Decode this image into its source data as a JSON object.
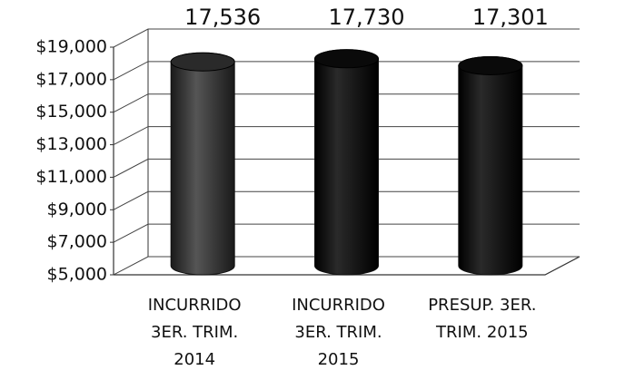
{
  "chart_data": {
    "type": "bar",
    "categories": [
      "INCURRIDO 3ER. TRIM. 2014",
      "INCURRIDO 3ER. TRIM. 2015",
      "PRESUP. 3ER. TRIM. 2015"
    ],
    "values": [
      17536,
      17730,
      17301
    ],
    "value_labels": [
      "17,536",
      "17,730",
      "17,301"
    ],
    "color": "#111111",
    "ylim": [
      5000,
      19000
    ],
    "yticks": [
      {
        "value": 5000,
        "label": "$5,000"
      },
      {
        "value": 7000,
        "label": "$7,000"
      },
      {
        "value": 9000,
        "label": "$9,000"
      },
      {
        "value": 11000,
        "label": "$11,000"
      },
      {
        "value": 13000,
        "label": "$13,000"
      },
      {
        "value": 15000,
        "label": "$15,000"
      },
      {
        "value": 17000,
        "label": "$17,000"
      },
      {
        "value": 19000,
        "label": "$19,000"
      }
    ],
    "grid": true
  }
}
